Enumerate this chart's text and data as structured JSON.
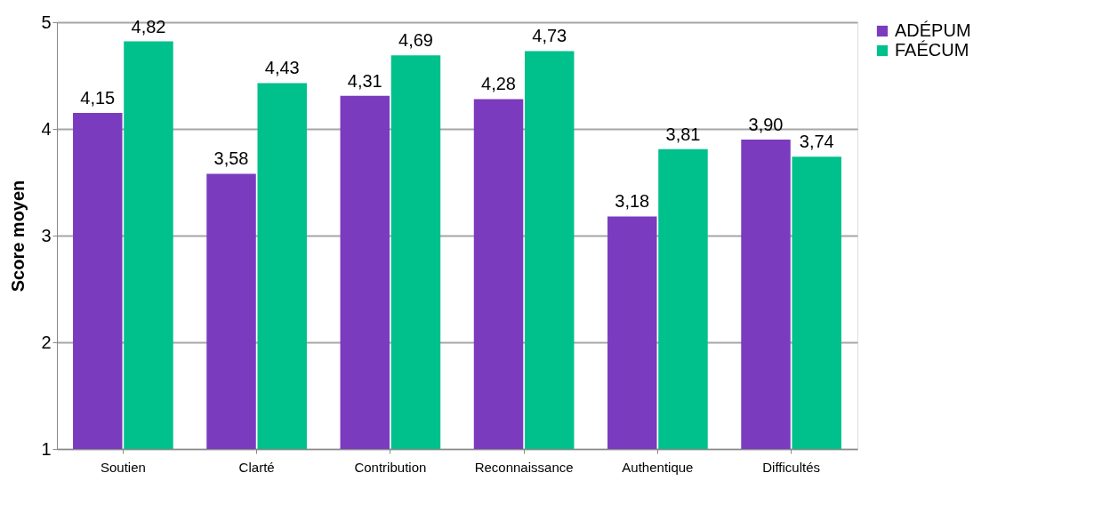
{
  "chart_data": {
    "type": "bar",
    "ylabel": "Score moyen",
    "categories": [
      "Soutien",
      "Clarté",
      "Contribution",
      "Reconnaissance",
      "Authentique",
      "Difficultés"
    ],
    "series": [
      {
        "name": "ADÉPUM",
        "color": "#7b3bbf",
        "values": [
          4.15,
          3.58,
          4.31,
          4.28,
          3.18,
          3.9
        ],
        "value_labels": [
          "4,15",
          "3,58",
          "4,31",
          "4,28",
          "3,18",
          "3,90"
        ]
      },
      {
        "name": "FAÉCUM",
        "color": "#00c08b",
        "values": [
          4.82,
          4.43,
          4.69,
          4.73,
          3.81,
          3.74
        ],
        "value_labels": [
          "4,82",
          "4,43",
          "4,69",
          "4,73",
          "3,81",
          "3,74"
        ]
      }
    ],
    "ylim": [
      1,
      5
    ],
    "yticks": [
      1,
      2,
      3,
      4,
      5
    ],
    "grid": "y",
    "legend": "right"
  }
}
